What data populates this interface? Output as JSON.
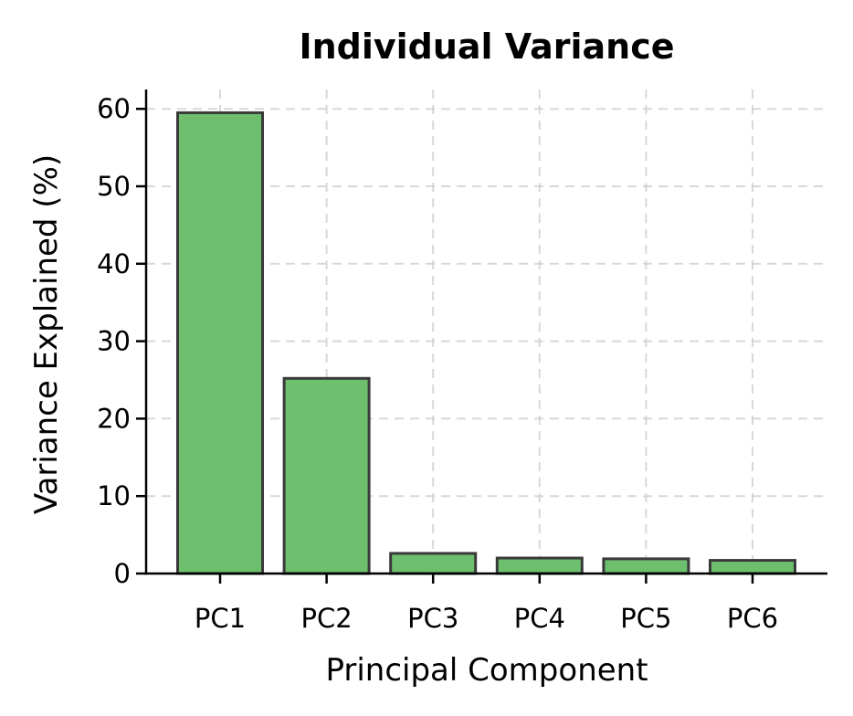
{
  "chart_data": {
    "type": "bar",
    "title": "Individual Variance",
    "xlabel": "Principal Component",
    "ylabel": "Variance Explained (%)",
    "categories": [
      "PC1",
      "PC2",
      "PC3",
      "PC4",
      "PC5",
      "PC6"
    ],
    "values": [
      59.5,
      25.2,
      2.6,
      2.0,
      1.9,
      1.7
    ],
    "ylim": [
      0,
      62.5
    ],
    "yticks": [
      0,
      10,
      20,
      30,
      40,
      50,
      60
    ],
    "grid": true,
    "colors": {
      "bar_fill": "#6dbf6d",
      "bar_edge": "#3a3a3a",
      "grid": "#cccccc",
      "axis": "#000000"
    }
  }
}
